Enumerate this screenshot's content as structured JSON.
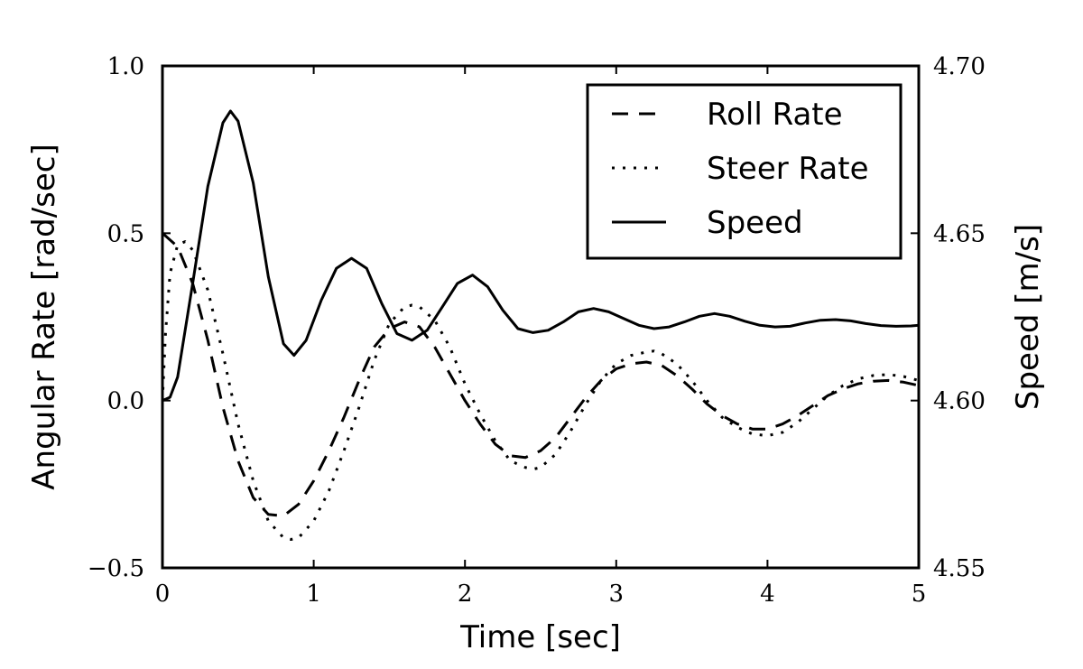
{
  "chart_data": {
    "type": "line",
    "xlabel": "Time [sec]",
    "ylabel_left": "Angular Rate [rad/sec]",
    "ylabel_right": "Speed [m/s]",
    "xlim": [
      0,
      5
    ],
    "ylim_left": [
      -0.5,
      1.0
    ],
    "ylim_right": [
      4.55,
      4.7
    ],
    "x_ticks": [
      0,
      1,
      2,
      3,
      4,
      5
    ],
    "x_tick_labels": [
      "0",
      "1",
      "2",
      "3",
      "4",
      "5"
    ],
    "y_left_ticks": [
      -0.5,
      0.0,
      0.5,
      1.0
    ],
    "y_left_tick_labels": [
      "−0.5",
      "0.0",
      "0.5",
      "1.0"
    ],
    "y_right_ticks": [
      4.55,
      4.6,
      4.65,
      4.7
    ],
    "y_right_tick_labels": [
      "4.55",
      "4.60",
      "4.65",
      "4.70"
    ],
    "grid": false,
    "legend_position": "top-right",
    "series": [
      {
        "name": "Roll Rate",
        "axis": "left",
        "style": "dashed",
        "points": [
          [
            0,
            0.5
          ],
          [
            0.1,
            0.46
          ],
          [
            0.2,
            0.35
          ],
          [
            0.3,
            0.18
          ],
          [
            0.4,
            -0.02
          ],
          [
            0.5,
            -0.18
          ],
          [
            0.6,
            -0.29
          ],
          [
            0.7,
            -0.34
          ],
          [
            0.8,
            -0.345
          ],
          [
            0.9,
            -0.31
          ],
          [
            1.0,
            -0.24
          ],
          [
            1.1,
            -0.15
          ],
          [
            1.2,
            -0.05
          ],
          [
            1.3,
            0.06
          ],
          [
            1.4,
            0.16
          ],
          [
            1.5,
            0.215
          ],
          [
            1.6,
            0.235
          ],
          [
            1.7,
            0.22
          ],
          [
            1.8,
            0.16
          ],
          [
            1.9,
            0.08
          ],
          [
            2.0,
            0.0
          ],
          [
            2.1,
            -0.07
          ],
          [
            2.2,
            -0.13
          ],
          [
            2.3,
            -0.165
          ],
          [
            2.4,
            -0.17
          ],
          [
            2.5,
            -0.15
          ],
          [
            2.6,
            -0.11
          ],
          [
            2.7,
            -0.05
          ],
          [
            2.8,
            0.01
          ],
          [
            2.9,
            0.06
          ],
          [
            3.0,
            0.095
          ],
          [
            3.1,
            0.11
          ],
          [
            3.2,
            0.115
          ],
          [
            3.3,
            0.105
          ],
          [
            3.4,
            0.075
          ],
          [
            3.5,
            0.035
          ],
          [
            3.6,
            -0.01
          ],
          [
            3.7,
            -0.045
          ],
          [
            3.8,
            -0.07
          ],
          [
            3.9,
            -0.085
          ],
          [
            4.0,
            -0.085
          ],
          [
            4.1,
            -0.07
          ],
          [
            4.2,
            -0.045
          ],
          [
            4.3,
            -0.015
          ],
          [
            4.4,
            0.015
          ],
          [
            4.5,
            0.035
          ],
          [
            4.6,
            0.05
          ],
          [
            4.7,
            0.058
          ],
          [
            4.8,
            0.06
          ],
          [
            4.9,
            0.055
          ],
          [
            5.0,
            0.045
          ]
        ]
      },
      {
        "name": "Steer Rate",
        "axis": "left",
        "style": "dotted",
        "points": [
          [
            0,
            0.0
          ],
          [
            0.02,
            0.2
          ],
          [
            0.05,
            0.38
          ],
          [
            0.1,
            0.465
          ],
          [
            0.15,
            0.475
          ],
          [
            0.2,
            0.45
          ],
          [
            0.3,
            0.33
          ],
          [
            0.4,
            0.14
          ],
          [
            0.5,
            -0.07
          ],
          [
            0.6,
            -0.24
          ],
          [
            0.7,
            -0.36
          ],
          [
            0.8,
            -0.41
          ],
          [
            0.85,
            -0.415
          ],
          [
            0.9,
            -0.41
          ],
          [
            1.0,
            -0.36
          ],
          [
            1.1,
            -0.27
          ],
          [
            1.2,
            -0.15
          ],
          [
            1.3,
            -0.02
          ],
          [
            1.4,
            0.12
          ],
          [
            1.5,
            0.23
          ],
          [
            1.6,
            0.28
          ],
          [
            1.65,
            0.285
          ],
          [
            1.7,
            0.28
          ],
          [
            1.8,
            0.24
          ],
          [
            1.9,
            0.16
          ],
          [
            2.0,
            0.05
          ],
          [
            2.1,
            -0.04
          ],
          [
            2.2,
            -0.12
          ],
          [
            2.3,
            -0.18
          ],
          [
            2.4,
            -0.2
          ],
          [
            2.45,
            -0.205
          ],
          [
            2.5,
            -0.2
          ],
          [
            2.6,
            -0.16
          ],
          [
            2.7,
            -0.09
          ],
          [
            2.8,
            -0.01
          ],
          [
            2.9,
            0.06
          ],
          [
            3.0,
            0.11
          ],
          [
            3.1,
            0.135
          ],
          [
            3.2,
            0.145
          ],
          [
            3.25,
            0.148
          ],
          [
            3.3,
            0.14
          ],
          [
            3.4,
            0.11
          ],
          [
            3.5,
            0.06
          ],
          [
            3.6,
            0.0
          ],
          [
            3.7,
            -0.05
          ],
          [
            3.8,
            -0.08
          ],
          [
            3.9,
            -0.1
          ],
          [
            4.0,
            -0.105
          ],
          [
            4.1,
            -0.095
          ],
          [
            4.2,
            -0.065
          ],
          [
            4.3,
            -0.025
          ],
          [
            4.4,
            0.015
          ],
          [
            4.5,
            0.045
          ],
          [
            4.6,
            0.065
          ],
          [
            4.7,
            0.075
          ],
          [
            4.8,
            0.078
          ],
          [
            4.9,
            0.072
          ],
          [
            5.0,
            0.06
          ]
        ]
      },
      {
        "name": "Speed",
        "axis": "right",
        "style": "solid",
        "points": [
          [
            0,
            4.6
          ],
          [
            0.05,
            4.601
          ],
          [
            0.1,
            4.607
          ],
          [
            0.2,
            4.635
          ],
          [
            0.3,
            4.664
          ],
          [
            0.4,
            4.683
          ],
          [
            0.45,
            4.6865
          ],
          [
            0.5,
            4.6835
          ],
          [
            0.6,
            4.665
          ],
          [
            0.7,
            4.637
          ],
          [
            0.8,
            4.617
          ],
          [
            0.87,
            4.6135
          ],
          [
            0.95,
            4.618
          ],
          [
            1.05,
            4.63
          ],
          [
            1.15,
            4.6395
          ],
          [
            1.25,
            4.6425
          ],
          [
            1.35,
            4.6395
          ],
          [
            1.45,
            4.629
          ],
          [
            1.55,
            4.62
          ],
          [
            1.65,
            4.618
          ],
          [
            1.75,
            4.621
          ],
          [
            1.85,
            4.628
          ],
          [
            1.95,
            4.635
          ],
          [
            2.05,
            4.6375
          ],
          [
            2.15,
            4.634
          ],
          [
            2.25,
            4.627
          ],
          [
            2.35,
            4.6215
          ],
          [
            2.45,
            4.6203
          ],
          [
            2.55,
            4.621
          ],
          [
            2.65,
            4.6235
          ],
          [
            2.75,
            4.6265
          ],
          [
            2.85,
            4.6275
          ],
          [
            2.95,
            4.6265
          ],
          [
            3.05,
            4.6245
          ],
          [
            3.15,
            4.6225
          ],
          [
            3.25,
            4.6215
          ],
          [
            3.35,
            4.622
          ],
          [
            3.45,
            4.6235
          ],
          [
            3.55,
            4.6252
          ],
          [
            3.65,
            4.626
          ],
          [
            3.75,
            4.6252
          ],
          [
            3.85,
            4.6237
          ],
          [
            3.95,
            4.6225
          ],
          [
            4.05,
            4.622
          ],
          [
            4.15,
            4.6222
          ],
          [
            4.25,
            4.6232
          ],
          [
            4.35,
            4.624
          ],
          [
            4.45,
            4.6242
          ],
          [
            4.55,
            4.6238
          ],
          [
            4.65,
            4.623
          ],
          [
            4.75,
            4.6224
          ],
          [
            4.85,
            4.6222
          ],
          [
            4.95,
            4.6223
          ],
          [
            5.0,
            4.6225
          ]
        ]
      }
    ]
  }
}
